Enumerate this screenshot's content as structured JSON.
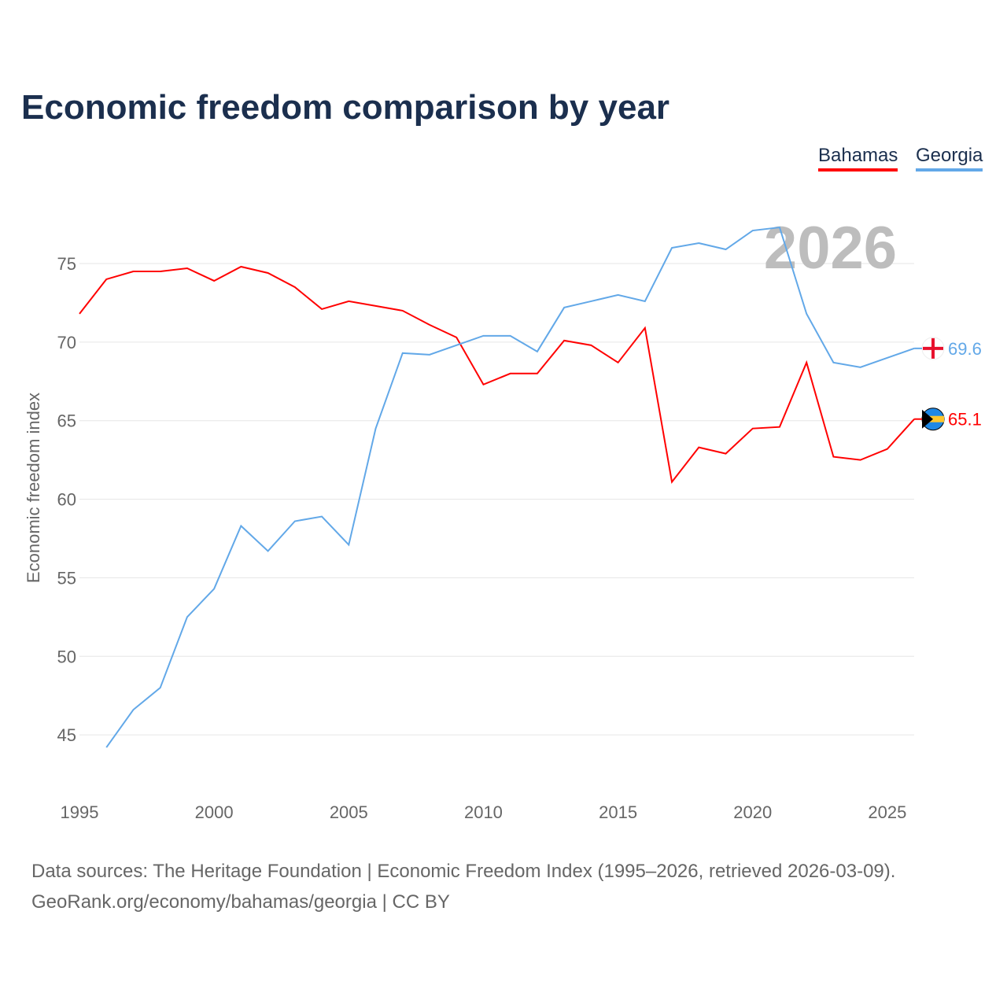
{
  "chart_data": {
    "type": "line",
    "title": "Economic freedom comparison by year",
    "ylabel": "Economic freedom index",
    "xlabel": "",
    "xlim": [
      1995,
      2026
    ],
    "ylim": [
      41.5,
      79
    ],
    "xticks": [
      1995,
      2000,
      2005,
      2010,
      2015,
      2020,
      2025
    ],
    "yticks": [
      45,
      50,
      55,
      60,
      65,
      70,
      75
    ],
    "year_watermark": "2026",
    "legend_position": "top-right",
    "series": [
      {
        "name": "Bahamas",
        "color": "#ff0000",
        "end_label": "65.1",
        "x": [
          1995,
          1996,
          1997,
          1998,
          1999,
          2000,
          2001,
          2002,
          2003,
          2004,
          2005,
          2006,
          2007,
          2008,
          2009,
          2010,
          2011,
          2012,
          2013,
          2014,
          2015,
          2016,
          2017,
          2018,
          2019,
          2020,
          2021,
          2022,
          2023,
          2024,
          2025,
          2026
        ],
        "values": [
          71.8,
          74.0,
          74.5,
          74.5,
          74.7,
          73.9,
          74.8,
          74.4,
          73.5,
          72.1,
          72.6,
          72.3,
          72.0,
          71.1,
          70.3,
          67.3,
          68.0,
          68.0,
          70.1,
          69.8,
          68.7,
          70.9,
          61.1,
          63.3,
          62.9,
          64.5,
          64.6,
          68.7,
          62.7,
          62.5,
          63.2,
          65.1
        ]
      },
      {
        "name": "Georgia",
        "color": "#62a8e8",
        "end_label": "69.6",
        "x": [
          1996,
          1997,
          1998,
          1999,
          2000,
          2001,
          2002,
          2003,
          2004,
          2005,
          2006,
          2007,
          2008,
          2009,
          2010,
          2011,
          2012,
          2013,
          2014,
          2015,
          2016,
          2017,
          2018,
          2019,
          2020,
          2021,
          2022,
          2023,
          2024,
          2025,
          2026
        ],
        "values": [
          44.2,
          46.6,
          48.0,
          52.5,
          54.3,
          58.3,
          56.7,
          58.6,
          58.9,
          57.1,
          64.5,
          69.3,
          69.2,
          69.8,
          70.4,
          70.4,
          69.4,
          72.2,
          72.6,
          73.0,
          72.6,
          76.0,
          76.3,
          75.9,
          77.1,
          77.3,
          71.8,
          68.7,
          68.4,
          69.0,
          69.6
        ]
      }
    ]
  },
  "footer": {
    "line1": "Data sources: The Heritage Foundation | Economic Freedom Index (1995–2026, retrieved 2026-03-09).",
    "line2": "GeoRank.org/economy/bahamas/georgia | CC BY"
  }
}
